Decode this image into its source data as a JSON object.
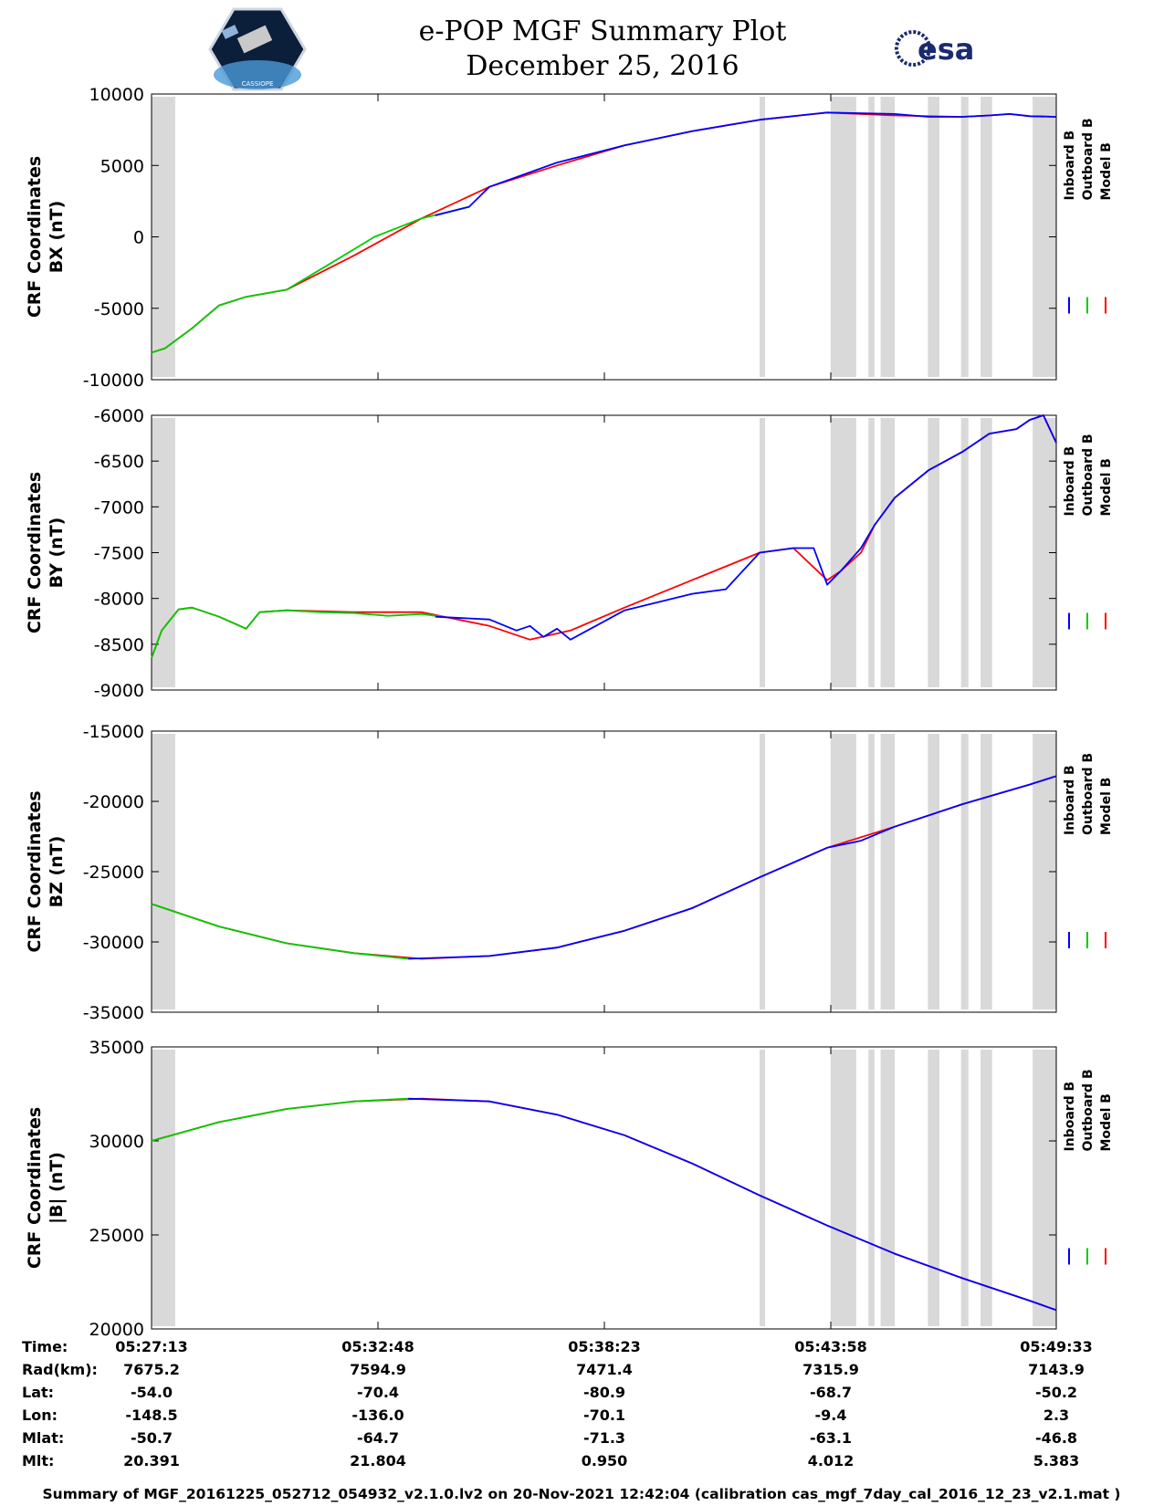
{
  "header": {
    "title": "e-POP MGF Summary Plot",
    "date": "December 25, 2016",
    "esa_logo_text": "esa",
    "cassiope_logo_text": "CASSIOPE"
  },
  "colors": {
    "inboard": "#0000ff",
    "outboard": "#00cc00",
    "model": "#ff0000",
    "shade": "#d9d9d9"
  },
  "chart_data": [
    {
      "type": "line",
      "title": "",
      "ylabel": [
        "CRF Coordinates",
        "BX (nT)"
      ],
      "ylim": [
        -10000,
        10000
      ],
      "yticks": [
        10000,
        5000,
        0,
        -5000,
        -10000
      ],
      "xlim": [
        0,
        1339
      ],
      "legend": [
        "Inboard B",
        "Outboard B",
        "Model B"
      ],
      "series": [
        {
          "name": "Model B",
          "x": [
            0,
            20,
            60,
            100,
            140,
            200,
            300,
            400,
            500,
            600,
            700,
            800,
            900,
            1000,
            1100,
            1200,
            1240,
            1270,
            1300,
            1339
          ],
          "y": [
            -8100,
            -7800,
            -6400,
            -4800,
            -4200,
            -3700,
            -1300,
            1300,
            3500,
            5000,
            6400,
            7400,
            8200,
            8700,
            8500,
            8400,
            8500,
            8600,
            8450,
            8400
          ]
        },
        {
          "name": "Outboard B",
          "x": [
            0,
            20,
            60,
            100,
            140,
            200,
            260,
            330,
            400,
            470
          ],
          "y": [
            -8100,
            -7800,
            -6400,
            -4800,
            -4200,
            -3700,
            -2000,
            0,
            1300,
            2100
          ]
        },
        {
          "name": "Inboard B",
          "x": [
            420,
            470,
            500,
            600,
            700,
            800,
            900,
            1000,
            1100,
            1150,
            1200,
            1240,
            1270,
            1300,
            1339
          ],
          "y": [
            1500,
            2100,
            3500,
            5200,
            6400,
            7400,
            8200,
            8700,
            8600,
            8400,
            8400,
            8500,
            8600,
            8450,
            8400
          ]
        }
      ]
    },
    {
      "type": "line",
      "title": "",
      "ylabel": [
        "CRF Coordinates",
        "BY (nT)"
      ],
      "ylim": [
        -9000,
        -6000
      ],
      "yticks": [
        -6000,
        -6500,
        -7000,
        -7500,
        -8000,
        -8500,
        -9000
      ],
      "xlim": [
        0,
        1339
      ],
      "legend": [
        "Inboard B",
        "Outboard B",
        "Model B"
      ],
      "series": [
        {
          "name": "Model B",
          "x": [
            0,
            15,
            40,
            60,
            100,
            140,
            160,
            200,
            300,
            400,
            500,
            560,
            620,
            700,
            800,
            900,
            950,
            1000,
            1020,
            1050,
            1070,
            1100,
            1150,
            1200,
            1240,
            1280,
            1300,
            1320,
            1339
          ],
          "y": [
            -8650,
            -8350,
            -8120,
            -8100,
            -8200,
            -8330,
            -8150,
            -8130,
            -8150,
            -8150,
            -8300,
            -8450,
            -8350,
            -8100,
            -7800,
            -7500,
            -7450,
            -7800,
            -7700,
            -7500,
            -7200,
            -6900,
            -6600,
            -6400,
            -6200,
            -6150,
            -6050,
            -6000,
            -6300
          ]
        },
        {
          "name": "Outboard B",
          "x": [
            0,
            15,
            40,
            60,
            100,
            140,
            160,
            200,
            250,
            300,
            350,
            400,
            430
          ],
          "y": [
            -8650,
            -8350,
            -8120,
            -8100,
            -8200,
            -8330,
            -8150,
            -8130,
            -8150,
            -8160,
            -8190,
            -8170,
            -8200
          ]
        },
        {
          "name": "Inboard B",
          "x": [
            420,
            500,
            540,
            560,
            580,
            600,
            620,
            700,
            800,
            850,
            900,
            950,
            980,
            1000,
            1020,
            1050,
            1070,
            1100,
            1150,
            1200,
            1240,
            1280,
            1300,
            1320,
            1339
          ],
          "y": [
            -8200,
            -8230,
            -8350,
            -8300,
            -8420,
            -8330,
            -8450,
            -8130,
            -7950,
            -7900,
            -7500,
            -7450,
            -7450,
            -7850,
            -7700,
            -7450,
            -7200,
            -6900,
            -6600,
            -6400,
            -6200,
            -6150,
            -6050,
            -6000,
            -6300
          ]
        }
      ]
    },
    {
      "type": "line",
      "title": "",
      "ylabel": [
        "CRF Coordinates",
        "BZ (nT)"
      ],
      "ylim": [
        -35000,
        -15000
      ],
      "yticks": [
        -15000,
        -20000,
        -25000,
        -30000,
        -35000
      ],
      "xlim": [
        0,
        1339
      ],
      "legend": [
        "Inboard B",
        "Outboard B",
        "Model B"
      ],
      "series": [
        {
          "name": "Model B",
          "x": [
            0,
            100,
            200,
            300,
            400,
            500,
            600,
            700,
            800,
            900,
            1000,
            1100,
            1200,
            1300,
            1339
          ],
          "y": [
            -27300,
            -28900,
            -30100,
            -30800,
            -31200,
            -31000,
            -30400,
            -29200,
            -27600,
            -25400,
            -23300,
            -21800,
            -20200,
            -18800,
            -18200
          ]
        },
        {
          "name": "Outboard B",
          "x": [
            0,
            100,
            200,
            300,
            380
          ],
          "y": [
            -27300,
            -28900,
            -30100,
            -30800,
            -31200
          ]
        },
        {
          "name": "Inboard B",
          "x": [
            380,
            500,
            600,
            700,
            800,
            900,
            1000,
            1050,
            1100,
            1200,
            1300,
            1339
          ],
          "y": [
            -31200,
            -31000,
            -30400,
            -29200,
            -27600,
            -25400,
            -23300,
            -22800,
            -21800,
            -20200,
            -18800,
            -18200
          ]
        }
      ]
    },
    {
      "type": "line",
      "title": "",
      "ylabel": [
        "CRF Coordinates",
        "|B| (nT)"
      ],
      "ylim": [
        20000,
        35000
      ],
      "yticks": [
        35000,
        30000,
        25000,
        20000
      ],
      "xlim": [
        0,
        1339
      ],
      "legend": [
        "Inboard B",
        "Outboard B",
        "Model B"
      ],
      "series": [
        {
          "name": "Model B",
          "x": [
            0,
            100,
            200,
            300,
            400,
            500,
            600,
            700,
            800,
            900,
            1000,
            1100,
            1200,
            1300,
            1339
          ],
          "y": [
            30000,
            31000,
            31700,
            32100,
            32250,
            32100,
            31400,
            30300,
            28800,
            27100,
            25500,
            24000,
            22700,
            21500,
            21000
          ]
        },
        {
          "name": "Outboard B",
          "x": [
            0,
            100,
            200,
            300,
            380
          ],
          "y": [
            30000,
            31000,
            31700,
            32100,
            32250
          ]
        },
        {
          "name": "Inboard B",
          "x": [
            380,
            500,
            600,
            700,
            800,
            900,
            1000,
            1100,
            1200,
            1300,
            1339
          ],
          "y": [
            32250,
            32100,
            31400,
            30300,
            28800,
            27100,
            25500,
            24000,
            22700,
            21500,
            21000
          ]
        }
      ]
    }
  ],
  "shaded_intervals_seconds": [
    [
      0,
      35
    ],
    [
      900,
      908
    ],
    [
      1005,
      1043
    ],
    [
      1061,
      1070
    ],
    [
      1079,
      1100
    ],
    [
      1149,
      1166
    ],
    [
      1198,
      1209
    ],
    [
      1227,
      1244
    ],
    [
      1304,
      1339
    ]
  ],
  "ephemeris": {
    "row_labels": [
      "Time:",
      "Rad(km):",
      "Lat:",
      "Lon:",
      "Mlat:",
      "Mlt:"
    ],
    "tick_positions_seconds": [
      0,
      335,
      670,
      1005,
      1340
    ],
    "columns": [
      {
        "time": "05:27:13",
        "rad": "7675.2",
        "lat": "-54.0",
        "lon": "-148.5",
        "mlat": "-50.7",
        "mlt": "20.391"
      },
      {
        "time": "05:32:48",
        "rad": "7594.9",
        "lat": "-70.4",
        "lon": "-136.0",
        "mlat": "-64.7",
        "mlt": "21.804"
      },
      {
        "time": "05:38:23",
        "rad": "7471.4",
        "lat": "-80.9",
        "lon": "-70.1",
        "mlat": "-71.3",
        "mlt": "0.950"
      },
      {
        "time": "05:43:58",
        "rad": "7315.9",
        "lat": "-68.7",
        "lon": "-9.4",
        "mlat": "-63.1",
        "mlt": "4.012"
      },
      {
        "time": "05:49:33",
        "rad": "7143.9",
        "lat": "-50.2",
        "lon": "2.3",
        "mlat": "-46.8",
        "mlt": "5.383"
      }
    ]
  },
  "footer": "Summary of MGF_20161225_052712_054932_v2.1.0.lv2 on 20-Nov-2021 12:42:04 (calibration cas_mgf_7day_cal_2016_12_23_v2.1.mat )"
}
